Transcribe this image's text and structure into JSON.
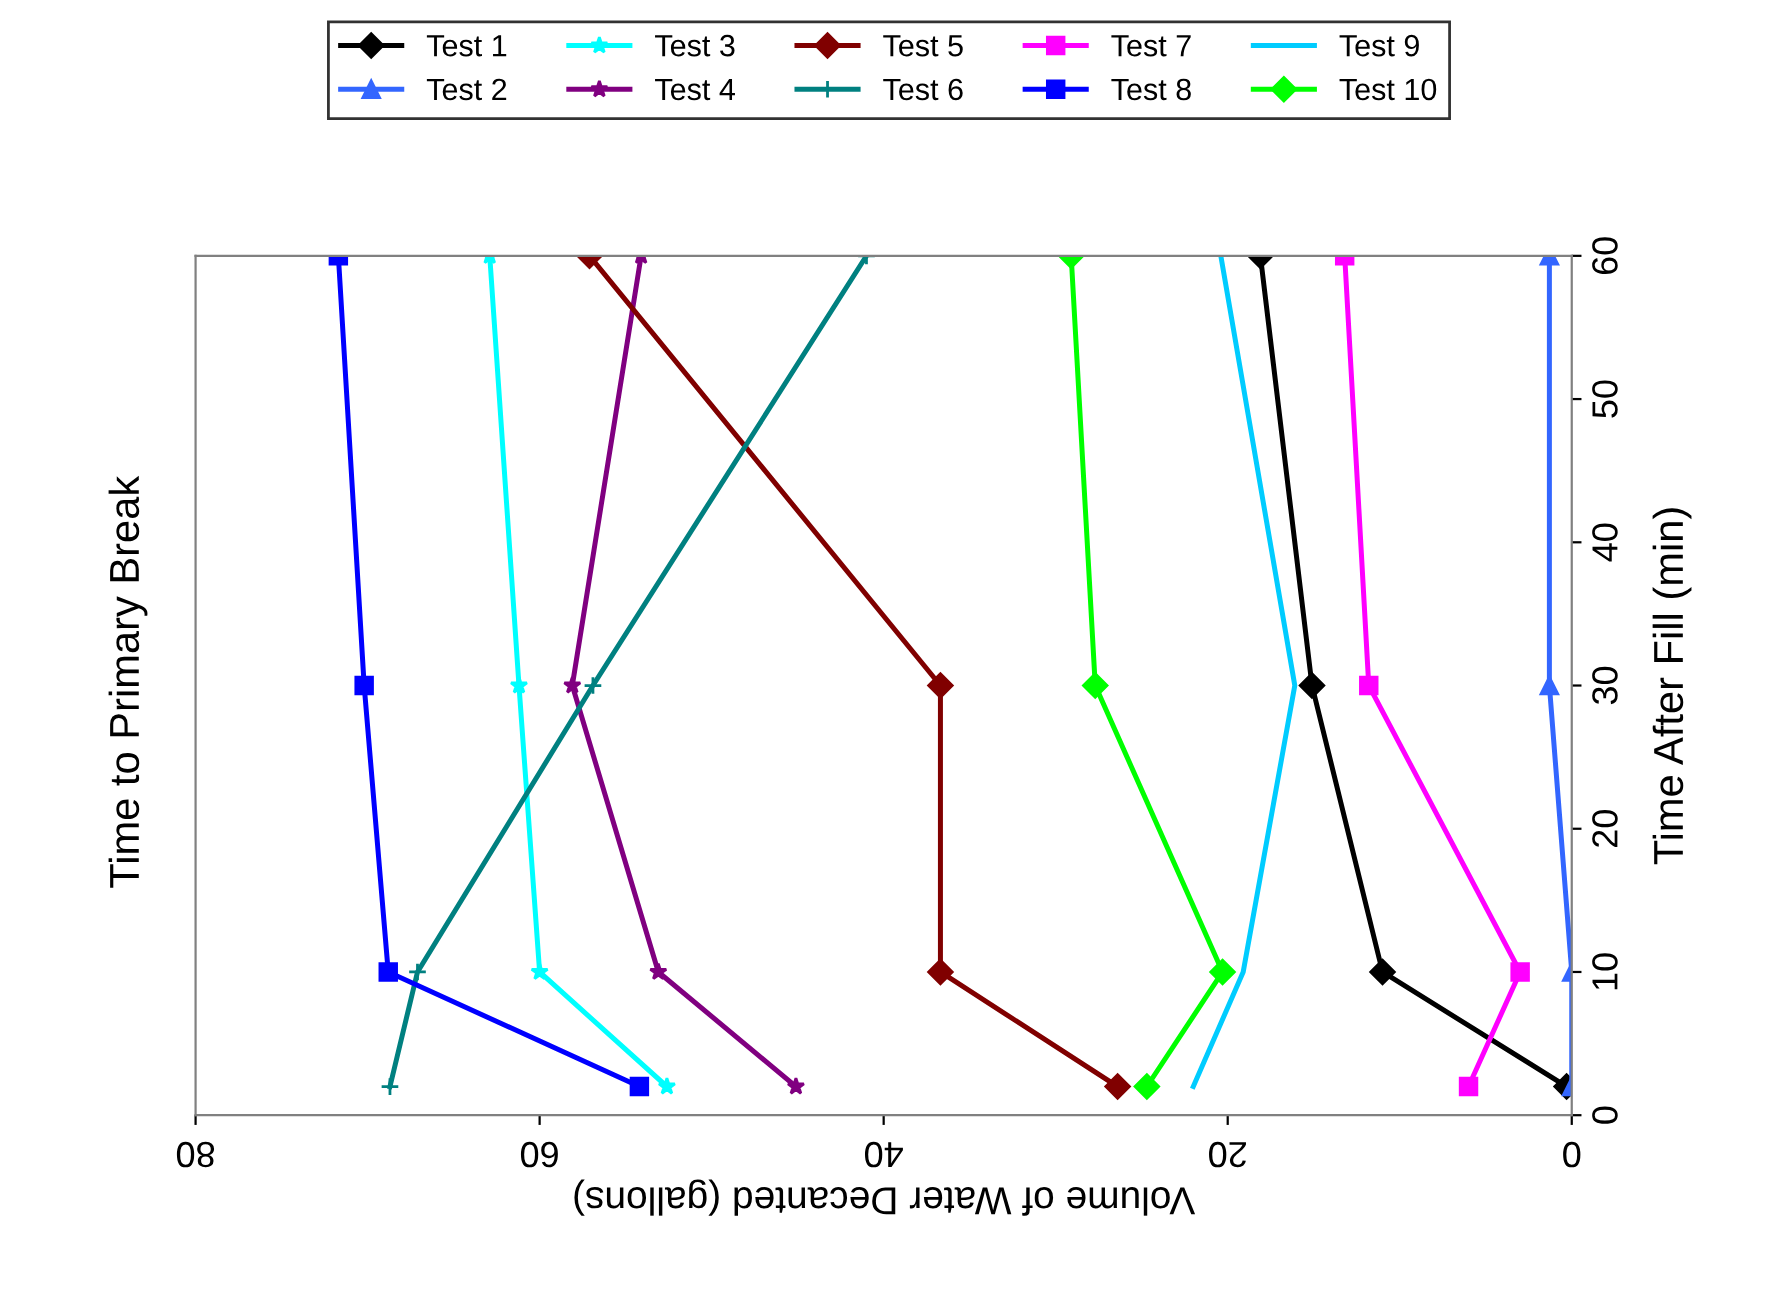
{
  "chart_data": {
    "type": "line",
    "title": "Time to Primary Break",
    "xlabel": "Volume of Water Decanted (gallons)",
    "ylabel": "Time After Fill (min)",
    "series": [
      {
        "name": "Test 1",
        "color": "#000000",
        "marker": "diamond",
        "x": [
          0.3,
          11.0,
          15.1,
          18.1
        ],
        "values": [
          2,
          10,
          30,
          60
        ]
      },
      {
        "name": "Test 2",
        "color": "#3366ff",
        "marker": "triangle",
        "x": [
          0,
          0,
          1.3,
          1.3
        ],
        "values": [
          2,
          10,
          30,
          60
        ]
      },
      {
        "name": "Test 3",
        "color": "#00ffff",
        "marker": "star",
        "x": [
          52.6,
          60.0,
          61.2,
          62.9
        ],
        "values": [
          2,
          10,
          30,
          60
        ]
      },
      {
        "name": "Test 4",
        "color": "#800080",
        "marker": "star",
        "x": [
          45.1,
          53.1,
          58.1,
          54.1
        ],
        "values": [
          2,
          10,
          30,
          60
        ]
      },
      {
        "name": "Test 5",
        "color": "#800000",
        "marker": "diamond",
        "x": [
          26.4,
          36.7,
          36.7,
          57.1
        ],
        "values": [
          2,
          10,
          30,
          60
        ]
      },
      {
        "name": "Test 6",
        "color": "#008080",
        "marker": "cross",
        "x": [
          68.7,
          67.1,
          56.9,
          41.0
        ],
        "values": [
          2,
          10,
          30,
          60
        ]
      },
      {
        "name": "Test 7",
        "color": "#ff00ff",
        "marker": "square",
        "x": [
          6.0,
          3.0,
          11.8,
          13.2
        ],
        "values": [
          2,
          10,
          30,
          60
        ]
      },
      {
        "name": "Test 8",
        "color": "#0000ff",
        "marker": "square",
        "x": [
          54.2,
          68.8,
          70.2,
          71.7
        ],
        "values": [
          2,
          10,
          30,
          60
        ]
      },
      {
        "name": "Test 9",
        "color": "#00ccff",
        "marker": "none",
        "x": [
          22.0,
          19.1,
          16.1,
          20.4
        ],
        "values": [
          2,
          10,
          30,
          60
        ]
      },
      {
        "name": "Test 10",
        "color": "#00ff00",
        "marker": "diamond",
        "x": [
          24.7,
          20.3,
          27.7,
          29.1
        ],
        "values": [
          2,
          10,
          30,
          60
        ]
      }
    ],
    "xlim": [
      80,
      0
    ],
    "xticks": [
      0,
      20,
      40,
      60,
      80
    ],
    "ylim": [
      0,
      60
    ],
    "yticks": [
      0,
      10,
      20,
      30,
      40,
      50,
      60
    ],
    "grid": false,
    "legend": "top"
  }
}
